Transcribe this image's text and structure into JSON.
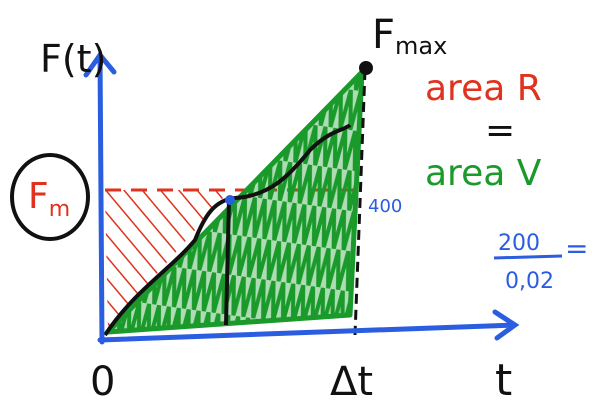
{
  "axes": {
    "y_label": "F(t)",
    "x_label": "t",
    "origin": "0",
    "x_mark": "Δt"
  },
  "labels": {
    "f_max": {
      "main": "F",
      "sub": "max"
    },
    "f_m": {
      "main": "F",
      "sub": "m"
    },
    "value_mark": "400"
  },
  "equation": {
    "left": "area R",
    "equals": "=",
    "right": "area V"
  },
  "fraction": {
    "numerator": "200",
    "denominator": "0,02",
    "equals": "="
  }
}
